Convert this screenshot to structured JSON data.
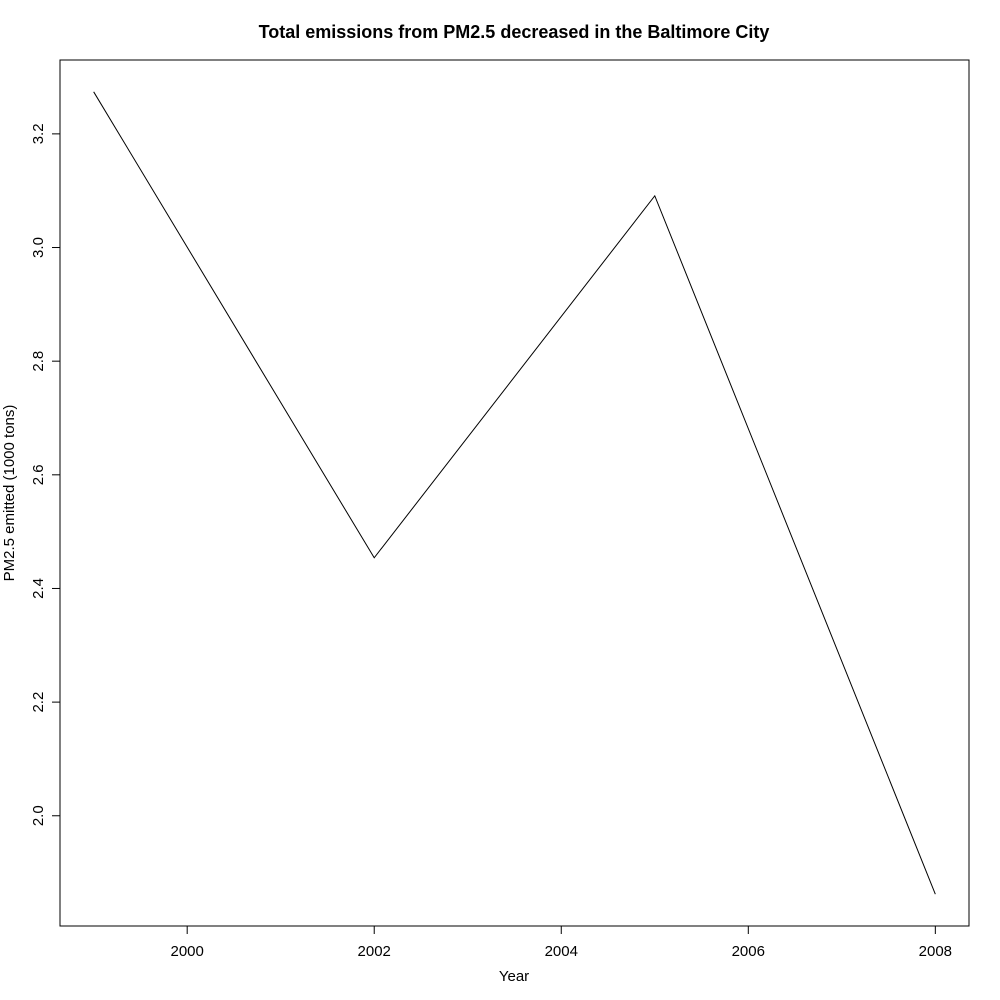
{
  "chart_data": {
    "type": "line",
    "title": "Total emissions from PM2.5 decreased in the Baltimore City",
    "xlabel": "Year",
    "ylabel": "PM2.5 emitted (1000 tons)",
    "x": [
      1999,
      2002,
      2005,
      2008
    ],
    "series": [
      {
        "values": [
          3.274,
          2.454,
          3.091,
          1.862
        ]
      }
    ],
    "xticks": [
      2000,
      2002,
      2004,
      2006,
      2008
    ],
    "yticks": [
      2.0,
      2.2,
      2.4,
      2.6,
      2.8,
      3.0,
      3.2
    ],
    "xtick_labels": [
      "2000",
      "2002",
      "2004",
      "2006",
      "2008"
    ],
    "ytick_labels": [
      "2.0",
      "2.2",
      "2.4",
      "2.6",
      "2.8",
      "3.0",
      "3.2"
    ],
    "xlim": [
      1998.64,
      2008.36
    ],
    "ylim": [
      1.806,
      3.33
    ],
    "grid": false,
    "line_color": "#000000"
  }
}
